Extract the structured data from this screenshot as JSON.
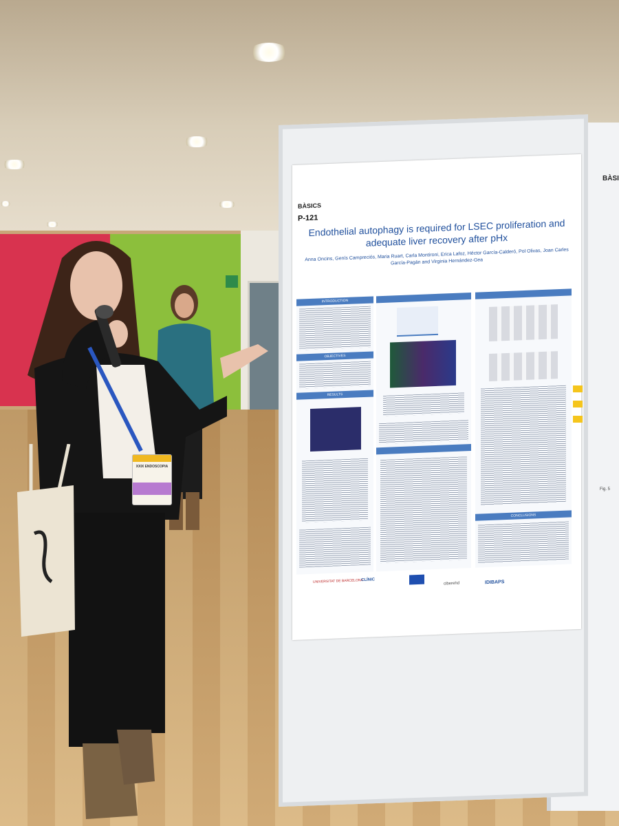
{
  "poster": {
    "section": "BÀSICS",
    "id": "P-121",
    "title": "Endothelial autophagy is required for LSEC proliferation and adequate liver recovery after pHx",
    "authors": "Anna Oncins, Genís Campreciós, Maria Ruart, Carla Montironi, Erica Lafoz, Héctor García-Calderó, Pol Olivas, Joan Carles García-Pagán and Virginia Hernández-Gea",
    "section_headers": [
      "INTRODUCTION",
      "OBJECTIVES",
      "RESULTS",
      "CONCLUSIONS"
    ],
    "logos": [
      "UNIVERSITAT DE BARCELONA",
      "CLÍNIC",
      "IDIBAPS",
      "ciberehd"
    ]
  },
  "side_board": {
    "label": "BÀSICS",
    "fig_caption": "Fig. 5"
  },
  "badge": {
    "text": "XXIX ENDOSCOPIA"
  }
}
